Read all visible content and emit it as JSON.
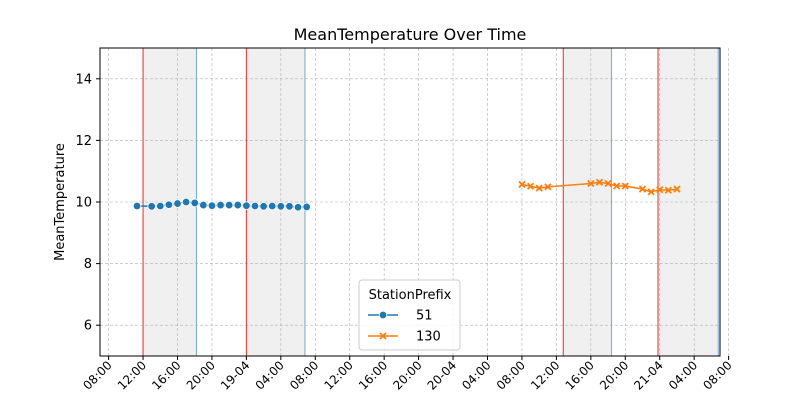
{
  "chart_data": {
    "type": "line",
    "title": "MeanTemperature Over Time",
    "xlabel": "",
    "ylabel": "MeanTemperature",
    "ylim": [
      5,
      15
    ],
    "yticks": [
      6,
      8,
      10,
      12,
      14
    ],
    "xlim_hours": [
      -1,
      71
    ],
    "x_ticks": [
      {
        "hour": 0,
        "label": "08:00"
      },
      {
        "hour": 4,
        "label": "12:00"
      },
      {
        "hour": 8,
        "label": "16:00"
      },
      {
        "hour": 12,
        "label": "20:00"
      },
      {
        "hour": 16,
        "label": "19-04"
      },
      {
        "hour": 20,
        "label": "04:00"
      },
      {
        "hour": 24,
        "label": "08:00"
      },
      {
        "hour": 28,
        "label": "12:00"
      },
      {
        "hour": 32,
        "label": "16:00"
      },
      {
        "hour": 36,
        "label": "20:00"
      },
      {
        "hour": 40,
        "label": "20-04"
      },
      {
        "hour": 44,
        "label": "04:00"
      },
      {
        "hour": 48,
        "label": "08:00"
      },
      {
        "hour": 52,
        "label": "12:00"
      },
      {
        "hour": 56,
        "label": "16:00"
      },
      {
        "hour": 60,
        "label": "20:00"
      },
      {
        "hour": 64,
        "label": "21-04"
      },
      {
        "hour": 68,
        "label": "04:00"
      },
      {
        "hour": 72,
        "label": "08:00"
      }
    ],
    "grid": true,
    "legend": {
      "title": "StationPrefix",
      "position": "lower-center"
    },
    "shaded_spans": [
      {
        "start": 4,
        "end": 10.2
      },
      {
        "start": 16,
        "end": 22.8
      },
      {
        "start": 52.8,
        "end": 58.4
      },
      {
        "start": 63.8,
        "end": 70.8
      }
    ],
    "red_lines": [
      4,
      16,
      52.8,
      63.8
    ],
    "blue_lines": [
      10.2,
      22.8,
      58.4,
      70.8
    ],
    "series": [
      {
        "name": "51",
        "color": "#1f77b4",
        "marker": "circle",
        "x": [
          3.3,
          5.0,
          6.0,
          7.0,
          8.0,
          9.0,
          10.0,
          11.0,
          12.0,
          13.0,
          14.0,
          15.0,
          16.0,
          17.0,
          18.0,
          19.0,
          20.0,
          21.0,
          22.0,
          23.0
        ],
        "y": [
          9.87,
          9.86,
          9.87,
          9.91,
          9.95,
          10.0,
          9.97,
          9.9,
          9.88,
          9.9,
          9.9,
          9.9,
          9.88,
          9.87,
          9.86,
          9.87,
          9.86,
          9.86,
          9.83,
          9.84
        ]
      },
      {
        "name": "130",
        "color": "#ff7f0e",
        "marker": "x",
        "x": [
          48.0,
          49.0,
          50.0,
          51.0,
          56.0,
          57.0,
          58.0,
          59.0,
          60.0,
          62.0,
          63.0,
          64.0,
          65.0,
          66.0
        ],
        "y": [
          10.57,
          10.51,
          10.45,
          10.49,
          10.6,
          10.64,
          10.6,
          10.52,
          10.52,
          10.42,
          10.33,
          10.4,
          10.38,
          10.42
        ]
      }
    ]
  }
}
